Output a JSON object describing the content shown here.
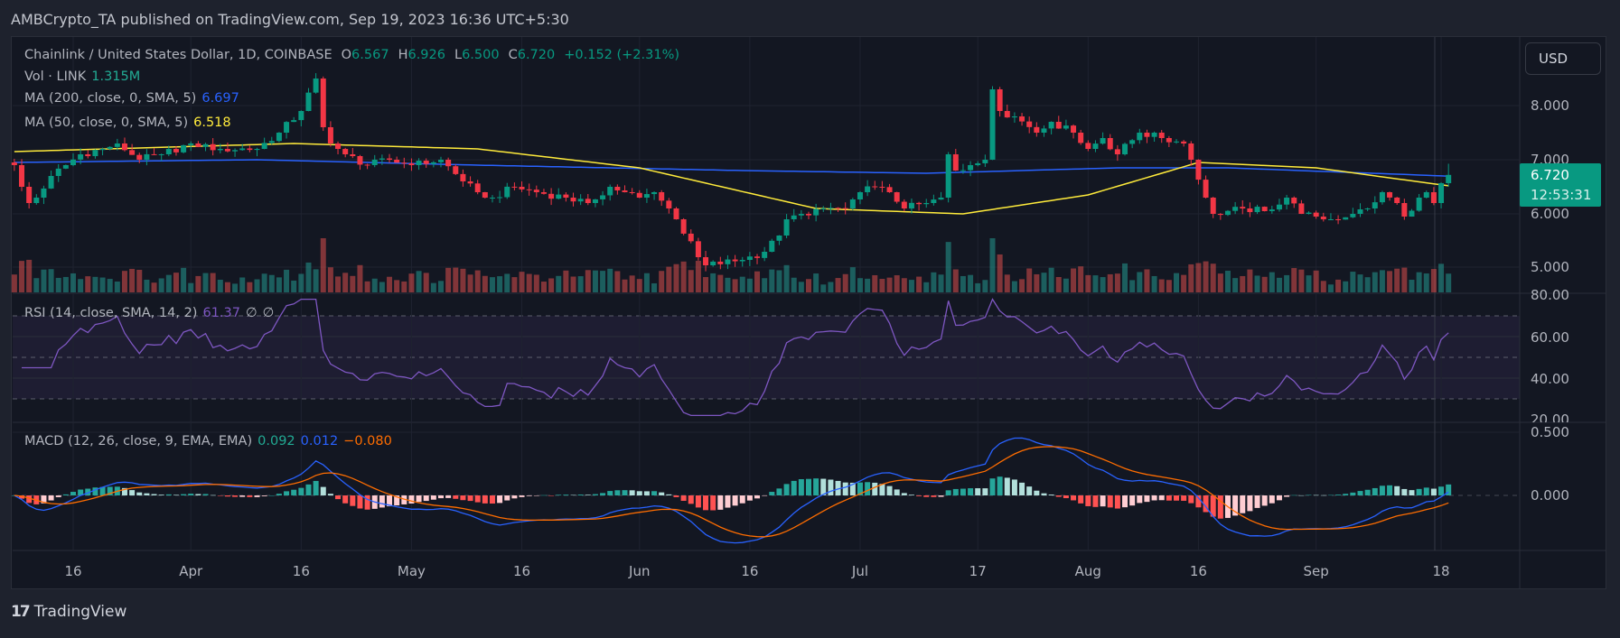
{
  "header": {
    "published": "AMBCrypto_TA published on TradingView.com, Sep 19, 2023 16:36 UTC+5:30"
  },
  "legend": {
    "symbol": "Chainlink / United States Dollar, 1D, COINBASE",
    "o_label": "O",
    "o": "6.567",
    "h_label": "H",
    "h": "6.926",
    "l_label": "L",
    "l": "6.500",
    "c_label": "C",
    "c": "6.720",
    "change": "+0.152 (+2.31%)",
    "vol_label": "Vol · LINK",
    "vol": "1.315M",
    "ma200_label": "MA (200, close, 0, SMA, 5)",
    "ma200": "6.697",
    "ma50_label": "MA (50, close, 0, SMA, 5)",
    "ma50": "6.518",
    "rsi_label": "RSI (14, close, SMA, 14, 2)",
    "rsi": "61.37",
    "rsi_na1": "∅",
    "rsi_na2": "∅",
    "macd_label": "MACD (12, 26, close, 9, EMA, EMA)",
    "macd_hist": "0.092",
    "macd": "0.012",
    "macd_signal": "−0.080"
  },
  "currency_button": "USD",
  "last_price": {
    "price": "6.720",
    "countdown": "12:53:31"
  },
  "price_axis": [
    "8.000",
    "7.000",
    "6.000",
    "5.000"
  ],
  "rsi_axis": [
    "80.00",
    "60.00",
    "40.00",
    "20.00"
  ],
  "macd_axis": [
    "0.500",
    "0.000"
  ],
  "time_axis": [
    {
      "label": "16",
      "date": "03-16"
    },
    {
      "label": "Apr",
      "date": "04-01"
    },
    {
      "label": "16",
      "date": "04-16"
    },
    {
      "label": "May",
      "date": "05-01"
    },
    {
      "label": "16",
      "date": "05-16"
    },
    {
      "label": "Jun",
      "date": "06-01"
    },
    {
      "label": "16",
      "date": "06-16"
    },
    {
      "label": "Jul",
      "date": "07-01"
    },
    {
      "label": "17",
      "date": "07-17"
    },
    {
      "label": "Aug",
      "date": "08-01"
    },
    {
      "label": "16",
      "date": "08-16"
    },
    {
      "label": "Sep",
      "date": "09-01"
    },
    {
      "label": "18",
      "date": "09-18"
    }
  ],
  "footer": {
    "logo_mark": "17",
    "brand": "TradingView"
  },
  "colors": {
    "up": "#089981",
    "down": "#f23645",
    "ma200": "#2962ff",
    "ma50": "#ffeb3b",
    "rsi": "#7e57c2",
    "macd": "#2962ff",
    "signal": "#ff6d00"
  },
  "chart_data": {
    "type": "candlestick",
    "start_date": "03-08",
    "close_keypoints": [
      [
        "03-08",
        6.9
      ],
      [
        "03-09",
        6.5
      ],
      [
        "03-10",
        6.2
      ],
      [
        "03-11",
        6.3
      ],
      [
        "03-13",
        6.7
      ],
      [
        "03-15",
        6.9
      ],
      [
        "03-17",
        7.1
      ],
      [
        "03-20",
        7.2
      ],
      [
        "03-22",
        7.3
      ],
      [
        "03-25",
        7.0
      ],
      [
        "03-28",
        7.1
      ],
      [
        "04-01",
        7.3
      ],
      [
        "04-05",
        7.2
      ],
      [
        "04-10",
        7.2
      ],
      [
        "04-13",
        7.5
      ],
      [
        "04-16",
        7.9
      ],
      [
        "04-18",
        8.5
      ],
      [
        "04-19",
        7.6
      ],
      [
        "04-20",
        7.3
      ],
      [
        "04-22",
        7.1
      ],
      [
        "04-25",
        6.9
      ],
      [
        "04-28",
        7.0
      ],
      [
        "05-01",
        6.9
      ],
      [
        "05-05",
        7.0
      ],
      [
        "05-08",
        6.6
      ],
      [
        "05-10",
        6.4
      ],
      [
        "05-12",
        6.3
      ],
      [
        "05-15",
        6.5
      ],
      [
        "05-18",
        6.4
      ],
      [
        "05-22",
        6.3
      ],
      [
        "05-25",
        6.2
      ],
      [
        "05-28",
        6.5
      ],
      [
        "05-30",
        6.4
      ],
      [
        "06-01",
        6.3
      ],
      [
        "06-03",
        6.4
      ],
      [
        "06-05",
        6.1
      ],
      [
        "06-06",
        5.9
      ],
      [
        "06-09",
        5.2
      ],
      [
        "06-10",
        5.05
      ],
      [
        "06-15",
        5.15
      ],
      [
        "06-18",
        5.3
      ],
      [
        "06-20",
        5.6
      ],
      [
        "06-21",
        5.9
      ],
      [
        "06-23",
        6.0
      ],
      [
        "06-26",
        6.1
      ],
      [
        "06-29",
        6.1
      ],
      [
        "07-01",
        6.4
      ],
      [
        "07-03",
        6.5
      ],
      [
        "07-05",
        6.4
      ],
      [
        "07-07",
        6.1
      ],
      [
        "07-10",
        6.2
      ],
      [
        "07-12",
        6.3
      ],
      [
        "07-13",
        7.1
      ],
      [
        "07-14",
        6.8
      ],
      [
        "07-16",
        6.9
      ],
      [
        "07-18",
        7.0
      ],
      [
        "07-19",
        8.3
      ],
      [
        "07-20",
        7.9
      ],
      [
        "07-22",
        7.8
      ],
      [
        "07-25",
        7.5
      ],
      [
        "07-27",
        7.7
      ],
      [
        "07-30",
        7.5
      ],
      [
        "08-01",
        7.2
      ],
      [
        "08-03",
        7.4
      ],
      [
        "08-05",
        7.1
      ],
      [
        "08-08",
        7.5
      ],
      [
        "08-11",
        7.4
      ],
      [
        "08-14",
        7.3
      ],
      [
        "08-15",
        7.0
      ],
      [
        "08-17",
        6.3
      ],
      [
        "08-18",
        6.0
      ],
      [
        "08-22",
        6.1
      ],
      [
        "08-25",
        6.05
      ],
      [
        "08-28",
        6.3
      ],
      [
        "08-30",
        6.0
      ],
      [
        "09-01",
        5.95
      ],
      [
        "09-03",
        5.9
      ],
      [
        "09-06",
        6.0
      ],
      [
        "09-08",
        6.1
      ],
      [
        "09-10",
        6.4
      ],
      [
        "09-12",
        6.2
      ],
      [
        "09-13",
        5.95
      ],
      [
        "09-15",
        6.3
      ],
      [
        "09-16",
        6.4
      ],
      [
        "09-17",
        6.2
      ],
      [
        "09-18",
        6.567
      ]
    ],
    "last_candle": {
      "date": "09-19",
      "open": 6.567,
      "high": 6.926,
      "low": 6.5,
      "close": 6.72
    },
    "ma200_keypoints": [
      [
        "03-08",
        6.95
      ],
      [
        "04-10",
        7.0
      ],
      [
        "05-10",
        6.9
      ],
      [
        "06-15",
        6.8
      ],
      [
        "07-10",
        6.75
      ],
      [
        "08-05",
        6.85
      ],
      [
        "08-20",
        6.85
      ],
      [
        "09-19",
        6.697
      ]
    ],
    "ma50_keypoints": [
      [
        "03-08",
        7.15
      ],
      [
        "04-15",
        7.3
      ],
      [
        "05-10",
        7.2
      ],
      [
        "06-01",
        6.85
      ],
      [
        "06-25",
        6.1
      ],
      [
        "07-15",
        6.0
      ],
      [
        "08-01",
        6.35
      ],
      [
        "08-16",
        6.95
      ],
      [
        "09-01",
        6.85
      ],
      [
        "09-19",
        6.518
      ]
    ],
    "price_range": [
      4.6,
      9.0
    ],
    "rsi_levels": [
      70,
      50,
      30
    ],
    "rsi_range": [
      20,
      80
    ],
    "macd_range": [
      -0.5,
      0.5
    ]
  }
}
